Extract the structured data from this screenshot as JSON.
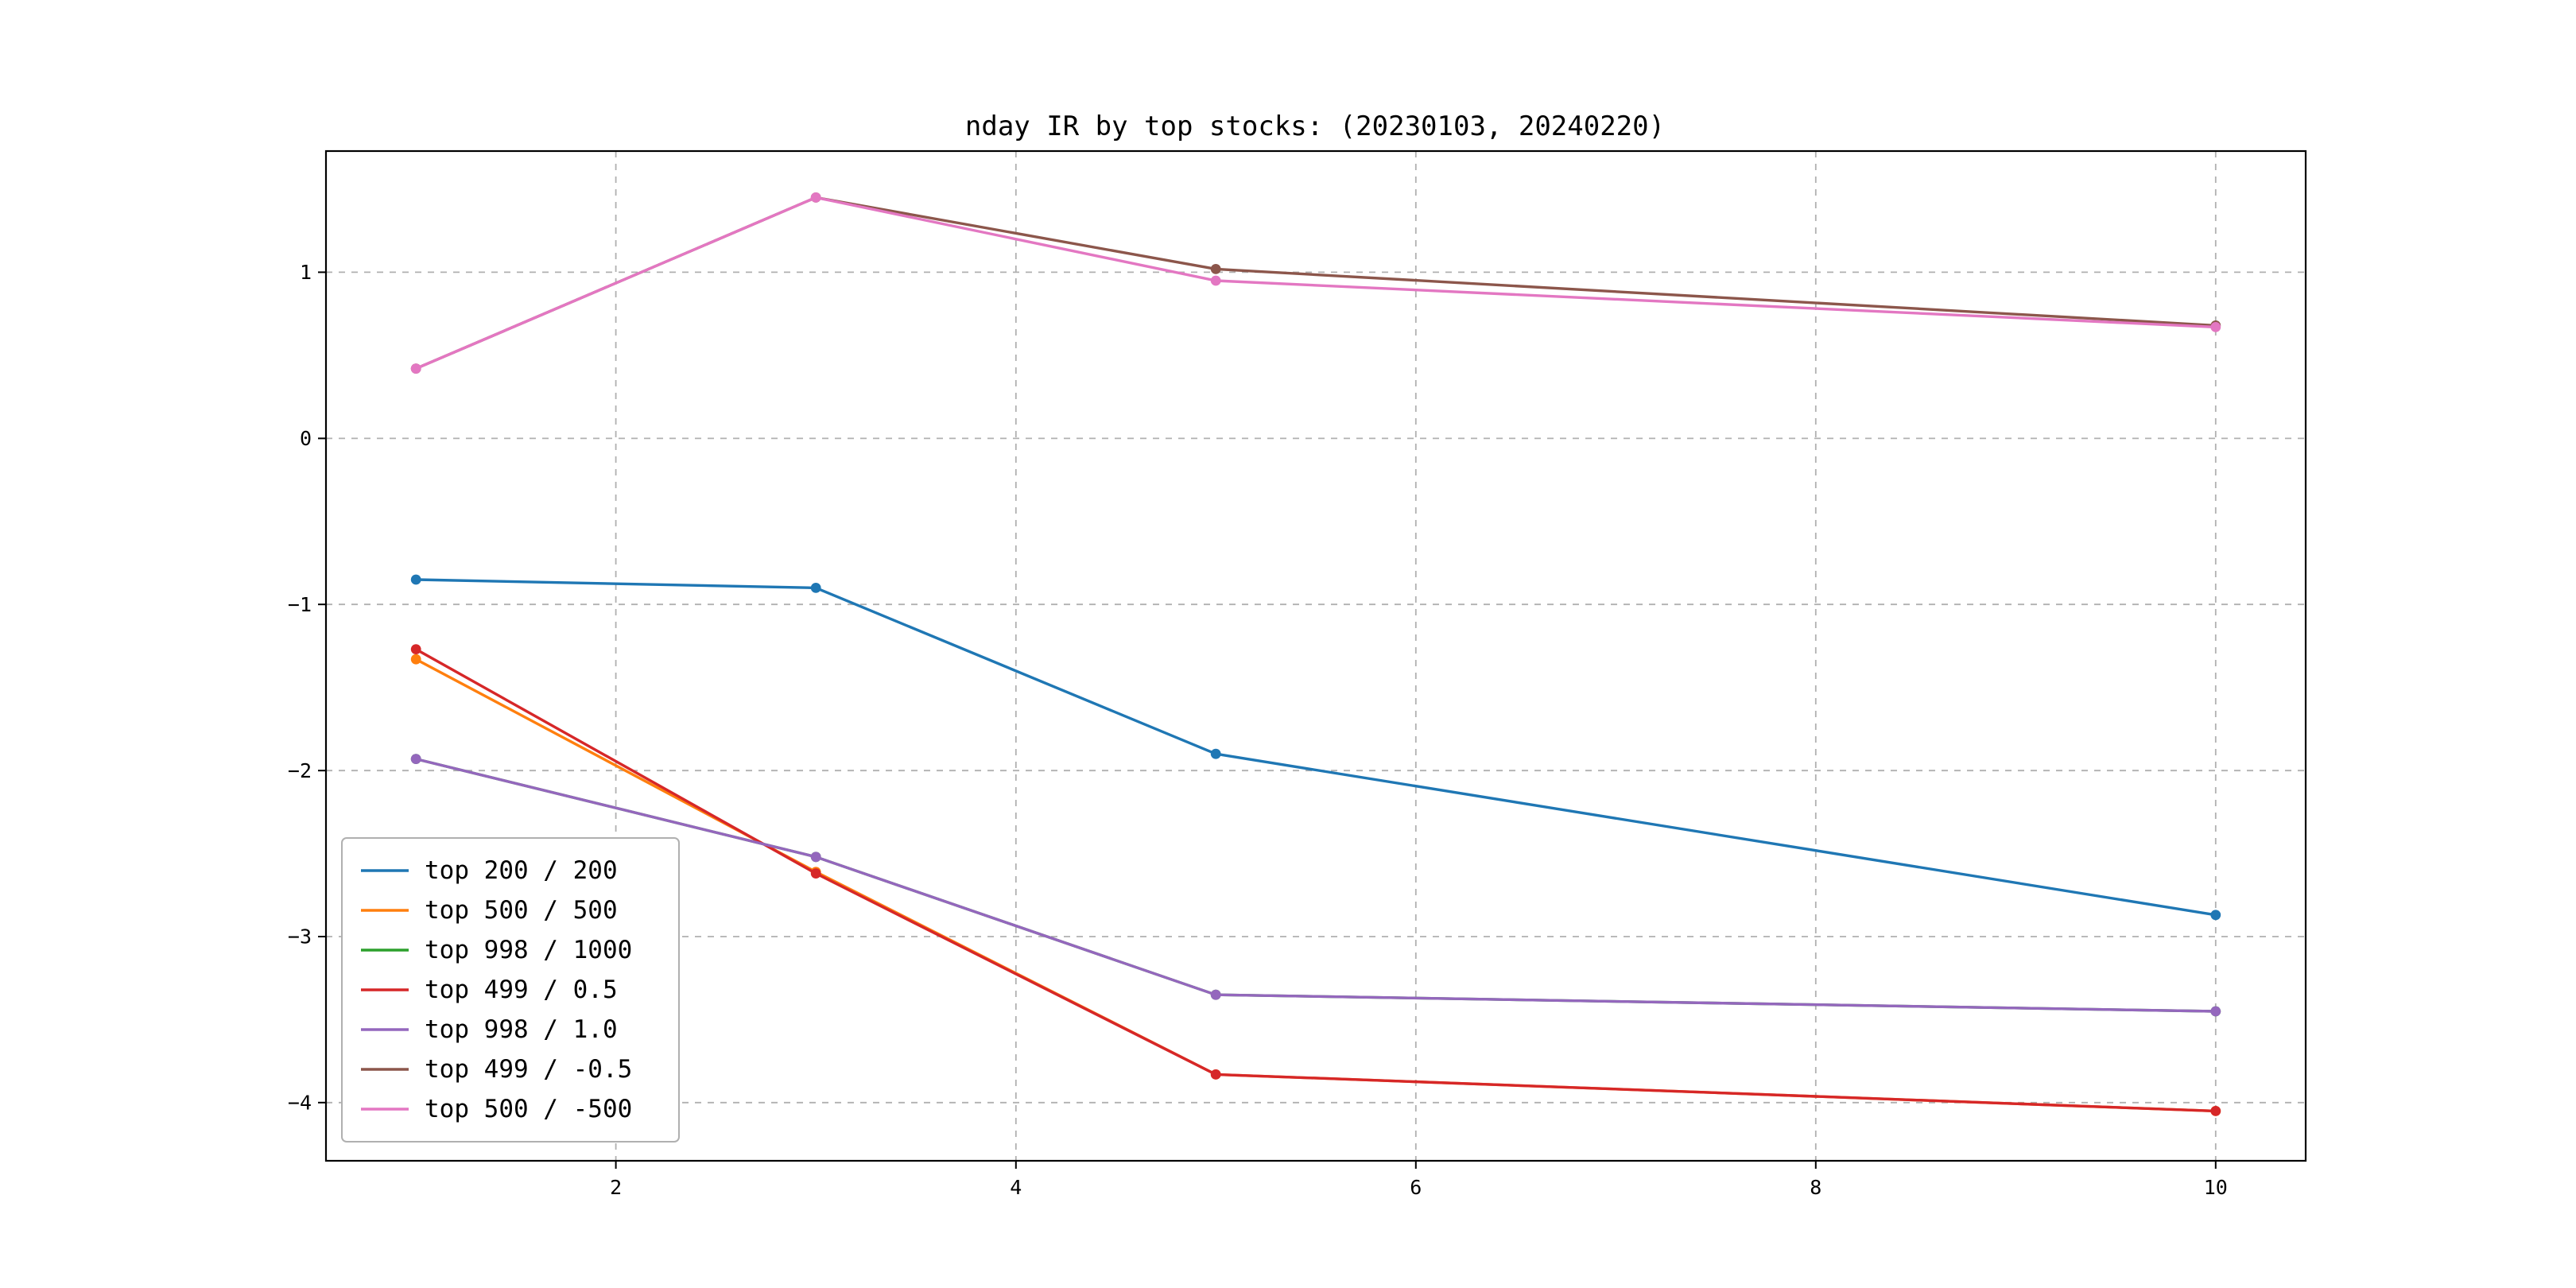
{
  "chart_data": {
    "type": "line",
    "title": "nday IR by top stocks: (20230103, 20240220)",
    "x": [
      1,
      3,
      5,
      10
    ],
    "series": [
      {
        "name": "top 200 / 200",
        "color": "#1f77b4",
        "values": [
          -0.85,
          -0.9,
          -1.9,
          -2.87
        ]
      },
      {
        "name": "top 500 / 500",
        "color": "#ff7f0e",
        "values": [
          -1.33,
          -2.61,
          -3.83,
          -4.05
        ]
      },
      {
        "name": "top 998 / 1000",
        "color": "#2ca02c",
        "values": [
          -1.93,
          -2.52,
          -3.35,
          -3.45
        ]
      },
      {
        "name": "top 499 / 0.5",
        "color": "#d62728",
        "values": [
          -1.27,
          -2.62,
          -3.83,
          -4.05
        ]
      },
      {
        "name": "top 998 / 1.0",
        "color": "#9467bd",
        "values": [
          -1.93,
          -2.52,
          -3.35,
          -3.45
        ]
      },
      {
        "name": "top 499 / -0.5",
        "color": "#8c564b",
        "values": [
          0.42,
          1.45,
          1.02,
          0.68
        ]
      },
      {
        "name": "top 500 / -500",
        "color": "#e377c2",
        "values": [
          0.42,
          1.45,
          0.95,
          0.67
        ]
      }
    ],
    "xticks": [
      2,
      4,
      6,
      8,
      10
    ],
    "xtick_labels": [
      "2",
      "4",
      "6",
      "8",
      "10"
    ],
    "ytick_values": [
      -4,
      -3,
      -2,
      -1,
      0,
      1
    ],
    "ytick_labels": [
      "−4",
      "−3",
      "−2",
      "−1",
      "0",
      "1"
    ],
    "xlim": [
      0.55,
      10.45
    ],
    "ylim": [
      -4.35,
      1.73
    ],
    "grid": true,
    "grid_style": "dashed",
    "legend_position": "lower left",
    "marker": "o"
  }
}
